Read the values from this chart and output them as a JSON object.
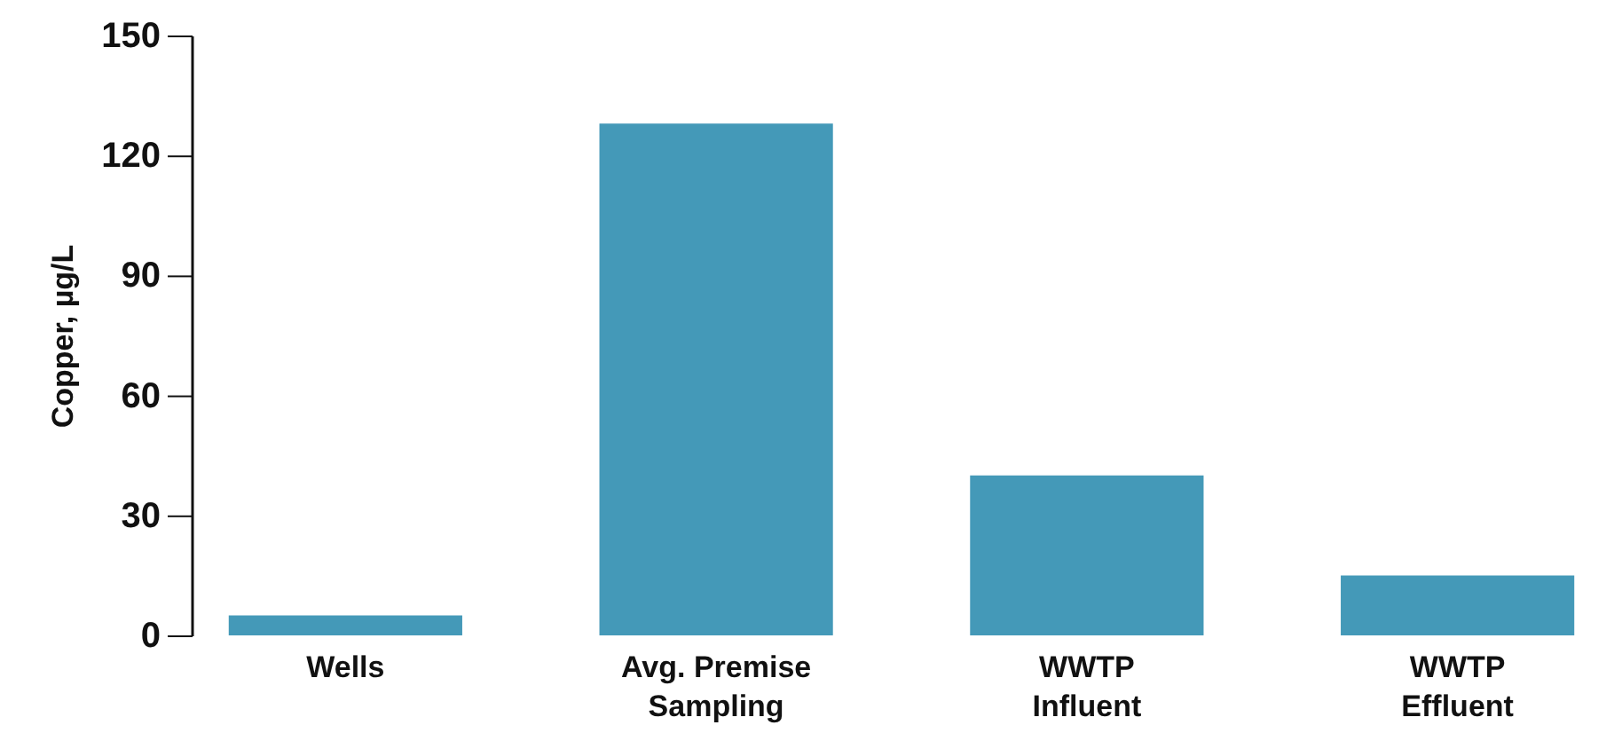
{
  "chart_data": {
    "type": "bar",
    "ylabel": "Copper, µg/L",
    "categories": [
      "Wells",
      "Avg. Premise Sampling",
      "WWTP Influent",
      "WWTP Effluent"
    ],
    "values": [
      5,
      128,
      40,
      15
    ],
    "color": "#4499b8",
    "ylim": [
      0,
      150
    ],
    "yticks": [
      0,
      30,
      60,
      90,
      120,
      150
    ],
    "grid": false
  }
}
